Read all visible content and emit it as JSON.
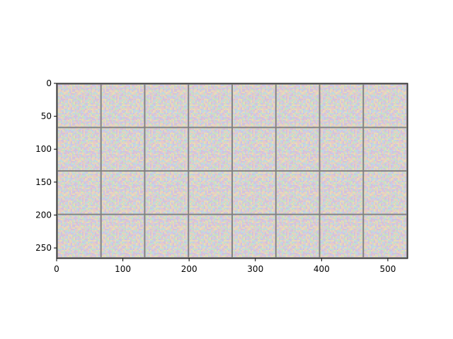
{
  "chart_data": {
    "type": "image-grid",
    "title": "",
    "xlabel": "",
    "ylabel": "",
    "xlim": [
      0,
      530
    ],
    "ylim": [
      266,
      0
    ],
    "y_inverted": true,
    "grid": false,
    "x_ticks": [
      0,
      100,
      200,
      300,
      400,
      500
    ],
    "y_ticks": [
      0,
      50,
      100,
      150,
      200,
      250
    ],
    "tiles": {
      "rows": 4,
      "cols": 8,
      "tile_size": 64,
      "padding": 2,
      "separator_color": "#808080",
      "content": "random-noise",
      "noise_palette": [
        "#e7c9c9",
        "#c9dfc0",
        "#cbc6e6",
        "#e6dcb8",
        "#d8c0d8",
        "#bfdcdc",
        "#e8d0c0",
        "#c8d0e8"
      ]
    }
  }
}
